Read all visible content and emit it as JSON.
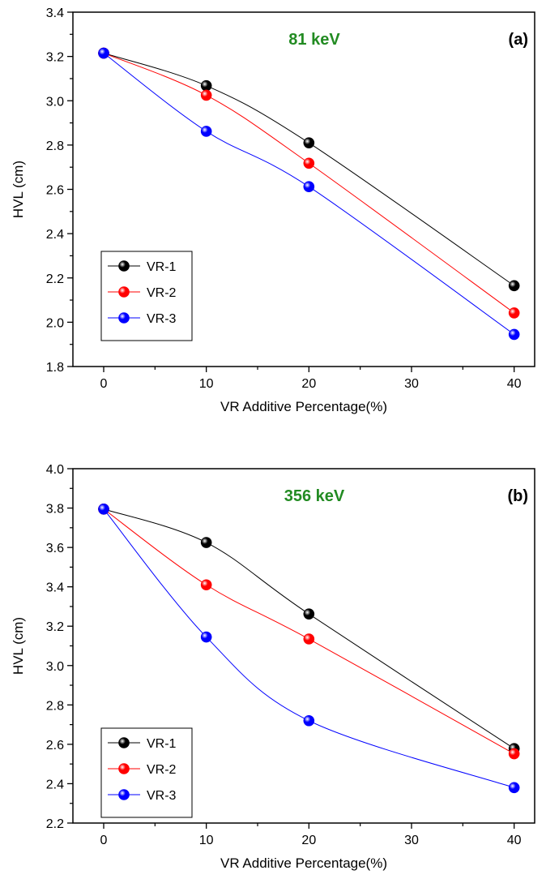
{
  "chart_data": [
    {
      "type": "line",
      "panel_label": "(a)",
      "annotation": "81 keV",
      "xlabel": "VR Additive Percentage(%)",
      "ylabel": "HVL (cm)",
      "xlim": [
        -3,
        42
      ],
      "ylim": [
        1.8,
        3.4
      ],
      "x_ticks": [
        "0",
        "10",
        "20",
        "30",
        "40"
      ],
      "y_ticks": [
        "1.8",
        "2.0",
        "2.2",
        "2.4",
        "2.6",
        "2.8",
        "3.0",
        "3.2",
        "3.4"
      ],
      "legend_position": "bottom-left",
      "x": [
        0,
        10,
        20,
        40
      ],
      "series": [
        {
          "name": "VR-1",
          "color": "#000000",
          "values": [
            3.215,
            3.068,
            2.81,
            2.165
          ]
        },
        {
          "name": "VR-2",
          "color": "#ff0000",
          "values": [
            3.215,
            3.025,
            2.718,
            2.042
          ]
        },
        {
          "name": "VR-3",
          "color": "#0000ff",
          "values": [
            3.215,
            2.862,
            2.612,
            1.945
          ]
        }
      ]
    },
    {
      "type": "line",
      "panel_label": "(b)",
      "annotation": "356 keV",
      "xlabel": "VR Additive Percentage(%)",
      "ylabel": "HVL (cm)",
      "xlim": [
        -3,
        42
      ],
      "ylim": [
        2.2,
        4.0
      ],
      "x_ticks": [
        "0",
        "10",
        "20",
        "30",
        "40"
      ],
      "y_ticks": [
        "2.2",
        "2.4",
        "2.6",
        "2.8",
        "3.0",
        "3.2",
        "3.4",
        "3.6",
        "3.8",
        "4.0"
      ],
      "legend_position": "bottom-left",
      "x": [
        0,
        10,
        20,
        40
      ],
      "series": [
        {
          "name": "VR-1",
          "color": "#000000",
          "values": [
            3.795,
            3.625,
            3.262,
            2.578
          ]
        },
        {
          "name": "VR-2",
          "color": "#ff0000",
          "values": [
            3.795,
            3.41,
            3.135,
            2.552
          ]
        },
        {
          "name": "VR-3",
          "color": "#0000ff",
          "values": [
            3.795,
            3.145,
            2.72,
            2.38
          ]
        }
      ]
    }
  ],
  "colors": {
    "annotation": "#228b22",
    "axis": "#000000"
  }
}
